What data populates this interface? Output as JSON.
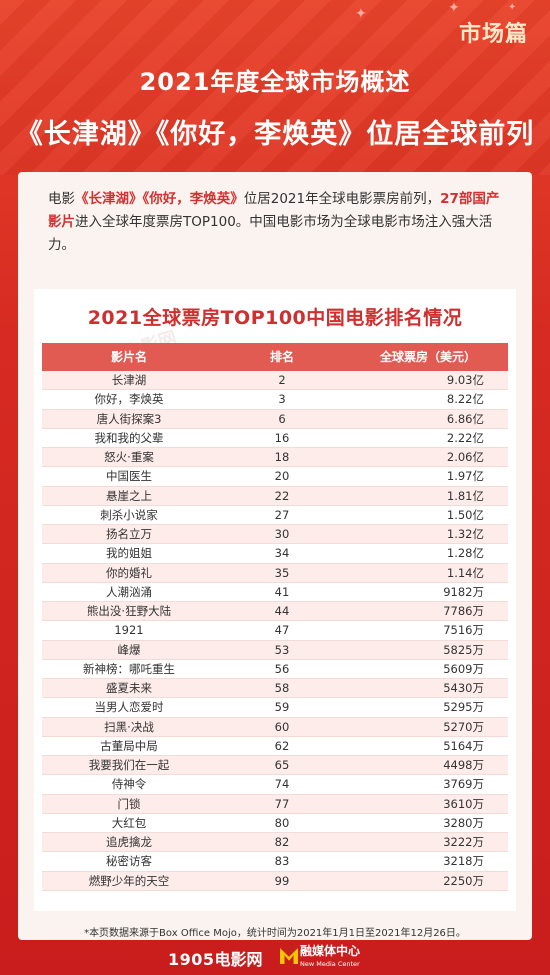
{
  "header": {
    "badge": "市场篇",
    "title_line1": "2021年度全球市场概述",
    "title_line2": "《长津湖》《你好，李焕英》位居全球前列"
  },
  "intro": {
    "part1": "电影",
    "film1": "《长津湖》",
    "film2": "《你好，李焕英》",
    "part2": "位居2021年全球电影票房前列，",
    "highlight": "27部国产影片",
    "part3": "进入全球年度票房TOP100。中国电影市场为全球电影市场注入强大活力。"
  },
  "table": {
    "title": "2021全球票房TOP100中国电影排名情况",
    "headers": [
      "影片名",
      "排名",
      "全球票房（美元）"
    ],
    "rows": [
      [
        "长津湖",
        "2",
        "9.03亿"
      ],
      [
        "你好，李焕英",
        "3",
        "8.22亿"
      ],
      [
        "唐人街探案3",
        "6",
        "6.86亿"
      ],
      [
        "我和我的父辈",
        "16",
        "2.22亿"
      ],
      [
        "怒火·重案",
        "18",
        "2.06亿"
      ],
      [
        "中国医生",
        "20",
        "1.97亿"
      ],
      [
        "悬崖之上",
        "22",
        "1.81亿"
      ],
      [
        "刺杀小说家",
        "27",
        "1.50亿"
      ],
      [
        "扬名立万",
        "30",
        "1.32亿"
      ],
      [
        "我的姐姐",
        "34",
        "1.28亿"
      ],
      [
        "你的婚礼",
        "35",
        "1.14亿"
      ],
      [
        "人潮汹涌",
        "41",
        "9182万"
      ],
      [
        "熊出没·狂野大陆",
        "44",
        "7786万"
      ],
      [
        "1921",
        "47",
        "7516万"
      ],
      [
        "峰爆",
        "53",
        "5825万"
      ],
      [
        "新神榜：哪吒重生",
        "56",
        "5609万"
      ],
      [
        "盛夏未来",
        "58",
        "5430万"
      ],
      [
        "当男人恋爱时",
        "59",
        "5295万"
      ],
      [
        "扫黑·决战",
        "60",
        "5270万"
      ],
      [
        "古董局中局",
        "62",
        "5164万"
      ],
      [
        "我要我们在一起",
        "65",
        "4498万"
      ],
      [
        "侍神令",
        "74",
        "3769万"
      ],
      [
        "门锁",
        "77",
        "3610万"
      ],
      [
        "大红包",
        "80",
        "3280万"
      ],
      [
        "追虎擒龙",
        "82",
        "3222万"
      ],
      [
        "秘密访客",
        "83",
        "3218万"
      ],
      [
        "燃野少年的天空",
        "99",
        "2250万"
      ]
    ],
    "footnote": "*本页数据来源于Box Office Mojo，统计时间为2021年1月1日至2021年12月26日。"
  },
  "footer": {
    "logo1_num": "1905",
    "logo1_text": "电影网",
    "logo2_cn": "融媒体中心",
    "logo2_en": "New Media Center"
  },
  "colors": {
    "background": "#d62a22",
    "accent_red": "#d33131",
    "header_row": "#e15b52",
    "stripe_row": "#fdecea"
  }
}
